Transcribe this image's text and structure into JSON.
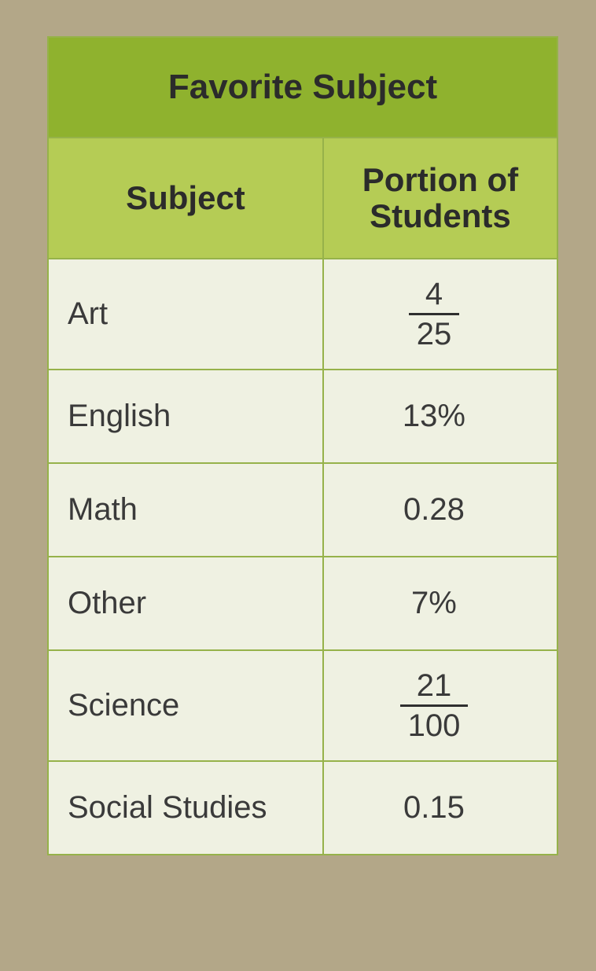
{
  "table": {
    "title": "Favorite Subject",
    "columns": {
      "subject": "Subject",
      "portion": "Portion of Students"
    },
    "colors": {
      "title_bg": "#8fb22e",
      "header_bg": "#b5cc55",
      "cell_bg": "#eff1e2",
      "border": "#96b24a",
      "text": "#2f2f2f"
    },
    "typography": {
      "title_fontsize_pt": 33,
      "header_fontsize_pt": 31,
      "cell_fontsize_pt": 30,
      "font_weight_headers": 700,
      "font_weight_cells": 400
    },
    "column_widths_pct": [
      54,
      46
    ],
    "rows": [
      {
        "subject": "Art",
        "value_type": "fraction",
        "numerator": "4",
        "denominator": "25"
      },
      {
        "subject": "English",
        "value_type": "text",
        "value": "13%"
      },
      {
        "subject": "Math",
        "value_type": "text",
        "value": "0.28"
      },
      {
        "subject": "Other",
        "value_type": "text",
        "value": "7%"
      },
      {
        "subject": "Science",
        "value_type": "fraction",
        "numerator": "21",
        "denominator": "100"
      },
      {
        "subject": "Social Studies",
        "value_type": "text",
        "value": "0.15"
      }
    ]
  }
}
